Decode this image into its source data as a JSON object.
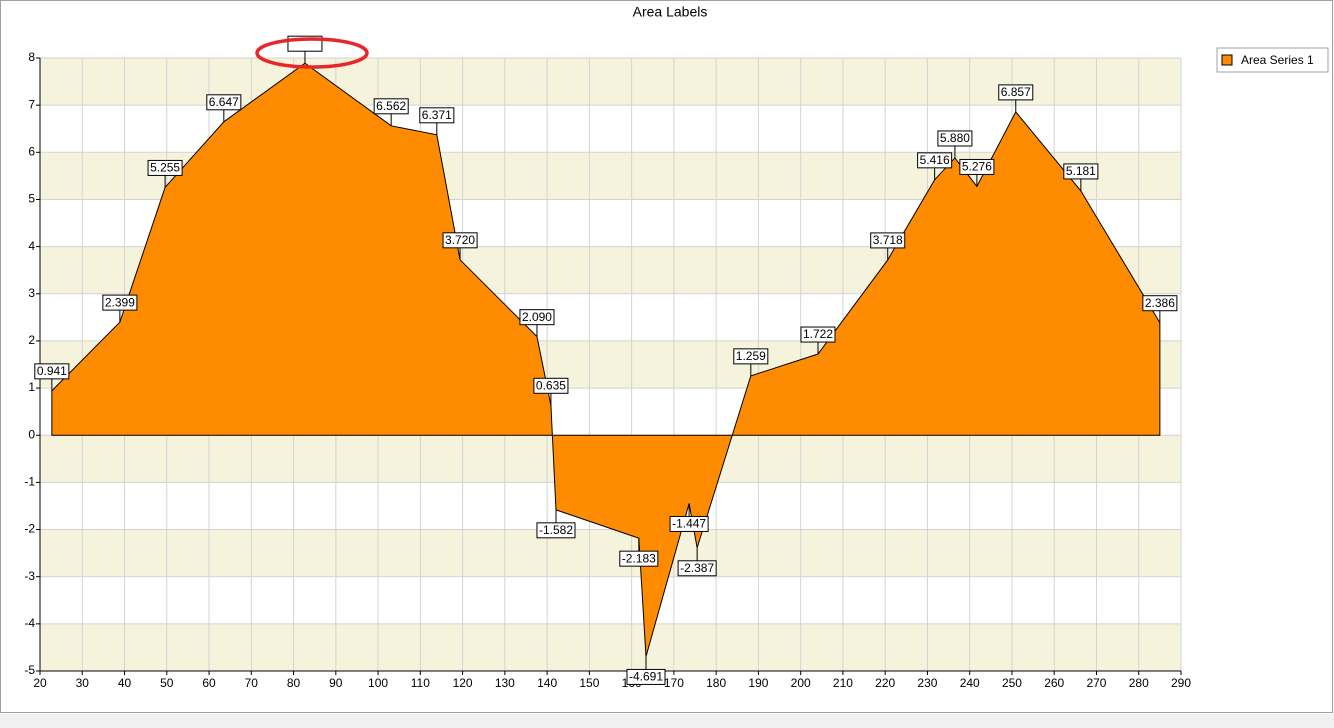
{
  "chart_data": {
    "type": "area",
    "title": "Area Labels",
    "series": [
      {
        "name": "Area Series 1",
        "color": "#ff8c00",
        "x": [
          22.8,
          38.9,
          49.6,
          63.5,
          82.7,
          103.1,
          113.9,
          119.4,
          137.6,
          140.9,
          142.1,
          161.7,
          163.4,
          173.6,
          175.5,
          188.2,
          204.1,
          220.6,
          231.7,
          236.5,
          241.7,
          250.9,
          266.3,
          285.0
        ],
        "values": [
          0.941,
          2.399,
          5.255,
          6.647,
          7.89,
          6.562,
          6.371,
          3.72,
          2.09,
          0.635,
          -1.582,
          -2.183,
          -4.691,
          -1.447,
          -2.387,
          1.259,
          1.722,
          3.718,
          5.416,
          5.88,
          5.276,
          6.857,
          5.181,
          2.386
        ],
        "value_labels": [
          "0.941",
          "2.399",
          "5.255",
          "6.647",
          null,
          "6.562",
          "6.371",
          "3.720",
          "2.090",
          "0.635",
          "-1.582",
          "-2.183",
          "-4.691",
          "-1.447",
          "-2.387",
          "1.259",
          "1.722",
          "3.718",
          "5.416",
          "5.880",
          "5.276",
          "6.857",
          "5.181",
          "2.386"
        ]
      }
    ],
    "xlim": [
      20,
      290
    ],
    "xticks": [
      20,
      30,
      40,
      50,
      60,
      70,
      80,
      90,
      100,
      110,
      120,
      130,
      140,
      150,
      160,
      170,
      180,
      190,
      200,
      210,
      220,
      230,
      240,
      250,
      260,
      270,
      280,
      290
    ],
    "ylim": [
      -5,
      8
    ],
    "yticks": [
      -5,
      -4,
      -3,
      -2,
      -1,
      0,
      1,
      2,
      3,
      4,
      5,
      6,
      7,
      8
    ],
    "grid": true,
    "interlaced": true,
    "interlace_color": "#f5f3dc",
    "legend": "top-right"
  }
}
